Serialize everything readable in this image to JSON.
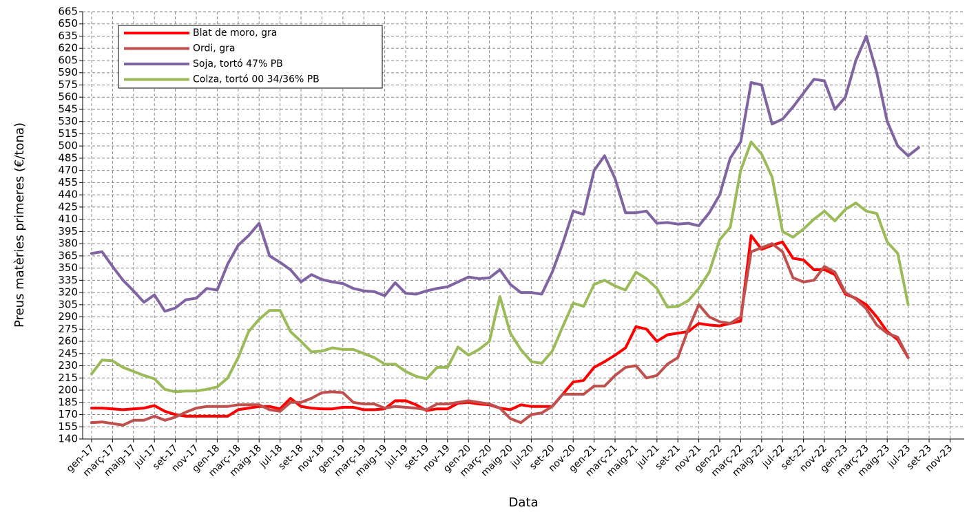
{
  "chart_data": {
    "type": "line",
    "x_label": "Data",
    "y_label": "Preus matèries primeres (€/tona)",
    "categories": [
      "gen-17",
      null,
      "març-17",
      null,
      "maig-17",
      null,
      "jul-17",
      null,
      "set-17",
      null,
      "nov-17",
      null,
      "gen-18",
      null,
      "març-18",
      null,
      "maig-18",
      null,
      "jul-18",
      null,
      "set-18",
      null,
      "nov-18",
      null,
      "gen-19",
      null,
      "març-19",
      null,
      "maig-19",
      null,
      "jul-19",
      null,
      "set-19",
      null,
      "nov-19",
      null,
      "gen-20",
      null,
      "març-20",
      null,
      "maig-20",
      null,
      "jul-20",
      null,
      "set-20",
      null,
      "nov-20",
      null,
      "gen-21",
      null,
      "març-21",
      null,
      "maig-21",
      null,
      "jul-21",
      null,
      "set-21",
      null,
      "nov-21",
      null,
      "gen-22",
      null,
      "març-22",
      null,
      "maig-22",
      null,
      "jul-22",
      null,
      "set-22",
      null,
      "nov-22",
      null,
      "gen-23",
      null,
      "març-23",
      null,
      "maig-23",
      null,
      "jul-23",
      null,
      "set-23",
      null,
      "nov-23"
    ],
    "series": [
      {
        "name": "Blat de moro, gra",
        "color": "#ff0000",
        "values": [
          178,
          178,
          177,
          176,
          177,
          178,
          181,
          174,
          170,
          168,
          168,
          168,
          168,
          168,
          176,
          178,
          180,
          180,
          177,
          190,
          180,
          178,
          177,
          177,
          179,
          179,
          176,
          176,
          177,
          187,
          187,
          182,
          175,
          177,
          177,
          184,
          185,
          183,
          182,
          178,
          176,
          182,
          180,
          180,
          180,
          195,
          210,
          212,
          228,
          235,
          243,
          252,
          278,
          275,
          260,
          268,
          270,
          272,
          282,
          280,
          279,
          282,
          285,
          390,
          373,
          378,
          382,
          362,
          360,
          348,
          348,
          342,
          318,
          313,
          305,
          290,
          272,
          262,
          240,
          null,
          null,
          null,
          null
        ]
      },
      {
        "name": "Ordi, gra",
        "color": "#c0504d",
        "values": [
          160,
          161,
          159,
          157,
          163,
          163,
          168,
          163,
          167,
          173,
          178,
          180,
          180,
          180,
          182,
          182,
          182,
          176,
          174,
          185,
          185,
          190,
          197,
          198,
          197,
          185,
          183,
          183,
          178,
          180,
          179,
          178,
          176,
          183,
          183,
          185,
          187,
          185,
          183,
          178,
          165,
          160,
          170,
          172,
          180,
          195,
          195,
          195,
          205,
          205,
          218,
          228,
          230,
          215,
          218,
          232,
          240,
          275,
          305,
          290,
          284,
          282,
          290,
          370,
          375,
          380,
          370,
          338,
          333,
          335,
          352,
          345,
          320,
          312,
          300,
          280,
          270,
          265,
          240,
          null,
          null,
          null,
          null
        ]
      },
      {
        "name": "Soja, tortó 47% PB",
        "color": "#8064a2",
        "values": [
          368,
          370,
          352,
          335,
          322,
          308,
          317,
          297,
          301,
          311,
          313,
          325,
          323,
          355,
          378,
          390,
          405,
          365,
          357,
          348,
          333,
          342,
          336,
          333,
          331,
          325,
          322,
          321,
          316,
          332,
          319,
          318,
          322,
          325,
          327,
          333,
          339,
          337,
          338,
          348,
          330,
          320,
          320,
          318,
          345,
          380,
          420,
          416,
          470,
          488,
          460,
          418,
          418,
          420,
          405,
          406,
          404,
          405,
          402,
          418,
          440,
          485,
          505,
          578,
          575,
          527,
          533,
          548,
          565,
          582,
          580,
          545,
          560,
          605,
          635,
          590,
          530,
          500,
          488,
          498,
          null,
          null,
          null
        ]
      },
      {
        "name": "Colza, tortó 00 34/36% PB",
        "color": "#9bbb59",
        "values": [
          220,
          237,
          236,
          228,
          223,
          218,
          214,
          201,
          198,
          199,
          199,
          201,
          204,
          215,
          240,
          272,
          287,
          298,
          298,
          272,
          260,
          247,
          248,
          252,
          250,
          250,
          245,
          240,
          232,
          232,
          223,
          217,
          214,
          228,
          228,
          253,
          243,
          250,
          260,
          315,
          270,
          250,
          235,
          233,
          248,
          278,
          307,
          303,
          330,
          335,
          328,
          323,
          345,
          337,
          325,
          302,
          303,
          310,
          325,
          345,
          385,
          400,
          470,
          505,
          490,
          462,
          395,
          388,
          398,
          410,
          420,
          408,
          422,
          430,
          420,
          417,
          382,
          368,
          305,
          null,
          null,
          null,
          null
        ]
      }
    ],
    "ylim": [
      140,
      665
    ],
    "yticks": [
      140,
      155,
      170,
      185,
      200,
      215,
      230,
      245,
      260,
      275,
      290,
      305,
      320,
      335,
      350,
      365,
      380,
      395,
      410,
      425,
      440,
      455,
      470,
      485,
      500,
      515,
      530,
      545,
      560,
      575,
      590,
      605,
      620,
      635,
      650,
      665
    ],
    "grid": true,
    "legend": "upper left"
  }
}
